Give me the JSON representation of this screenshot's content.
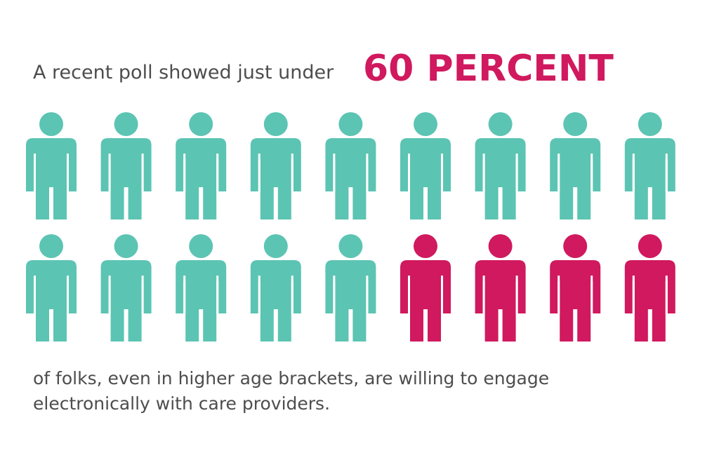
{
  "header": {
    "lead": "A recent poll showed just under",
    "highlight": "60 PERCENT"
  },
  "footer": {
    "lines": [
      "of folks, even in higher age brackets, are willing to engage",
      "electronically with care providers."
    ]
  }
}
